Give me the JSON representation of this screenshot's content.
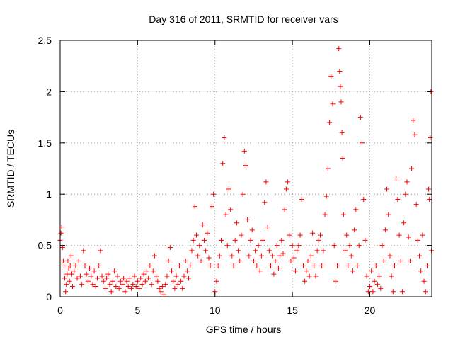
{
  "chart_data": {
    "type": "scatter",
    "title": "Day 316 of 2011, SRMTID for receiver vars",
    "xlabel": "GPS time / hours",
    "ylabel": "SRMTID / TECUs",
    "xlim": [
      0,
      24
    ],
    "ylim": [
      0,
      2.5
    ],
    "xticks": [
      0,
      5,
      10,
      15,
      20
    ],
    "yticks": [
      0,
      0.5,
      1,
      1.5,
      2,
      2.5
    ],
    "xtick_labels": [
      "0",
      "5",
      "10",
      "15",
      "20"
    ],
    "ytick_labels": [
      "0",
      "0.5",
      "1",
      "1.5",
      "2",
      "2.5"
    ],
    "grid": true,
    "marker": "+",
    "color": "#ff0000",
    "series": [
      {
        "name": "SRMTID",
        "points": [
          [
            0.0,
            0.55
          ],
          [
            0.05,
            0.62
          ],
          [
            0.1,
            0.68
          ],
          [
            0.15,
            0.48
          ],
          [
            0.2,
            0.35
          ],
          [
            0.25,
            0.3
          ],
          [
            0.3,
            0.18
          ],
          [
            0.35,
            0.05
          ],
          [
            0.4,
            0.12
          ],
          [
            0.45,
            0.22
          ],
          [
            0.5,
            0.35
          ],
          [
            0.55,
            0.28
          ],
          [
            0.6,
            0.15
          ],
          [
            0.65,
            0.3
          ],
          [
            0.7,
            0.4
          ],
          [
            0.75,
            0.22
          ],
          [
            0.8,
            0.1
          ],
          [
            0.9,
            0.25
          ],
          [
            1.0,
            0.3
          ],
          [
            1.1,
            0.18
          ],
          [
            1.2,
            0.35
          ],
          [
            1.3,
            0.2
          ],
          [
            1.4,
            0.12
          ],
          [
            1.5,
            0.45
          ],
          [
            1.6,
            0.3
          ],
          [
            1.7,
            0.22
          ],
          [
            1.8,
            0.15
          ],
          [
            1.9,
            0.28
          ],
          [
            2.0,
            0.2
          ],
          [
            2.1,
            0.12
          ],
          [
            2.2,
            0.25
          ],
          [
            2.3,
            0.1
          ],
          [
            2.4,
            0.18
          ],
          [
            2.5,
            0.3
          ],
          [
            2.6,
            0.45
          ],
          [
            2.7,
            0.2
          ],
          [
            2.8,
            0.15
          ],
          [
            2.9,
            0.08
          ],
          [
            3.0,
            0.18
          ],
          [
            3.1,
            0.22
          ],
          [
            3.2,
            0.12
          ],
          [
            3.3,
            0.05
          ],
          [
            3.4,
            0.15
          ],
          [
            3.5,
            0.25
          ],
          [
            3.6,
            0.1
          ],
          [
            3.7,
            0.2
          ],
          [
            3.8,
            0.08
          ],
          [
            3.9,
            0.15
          ],
          [
            4.0,
            0.12
          ],
          [
            4.1,
            0.18
          ],
          [
            4.2,
            0.05
          ],
          [
            4.3,
            0.15
          ],
          [
            4.4,
            0.1
          ],
          [
            4.5,
            0.18
          ],
          [
            4.6,
            0.08
          ],
          [
            4.7,
            0.12
          ],
          [
            4.8,
            0.2
          ],
          [
            4.9,
            0.1
          ],
          [
            5.0,
            0.15
          ],
          [
            5.1,
            0.08
          ],
          [
            5.2,
            0.18
          ],
          [
            5.3,
            0.12
          ],
          [
            5.4,
            0.22
          ],
          [
            5.5,
            0.15
          ],
          [
            5.6,
            0.25
          ],
          [
            5.7,
            0.18
          ],
          [
            5.8,
            0.3
          ],
          [
            5.9,
            0.12
          ],
          [
            6.0,
            0.25
          ],
          [
            6.1,
            0.4
          ],
          [
            6.2,
            0.2
          ],
          [
            6.3,
            0.15
          ],
          [
            6.4,
            0.08
          ],
          [
            6.5,
            0.05
          ],
          [
            6.6,
            0.1
          ],
          [
            6.7,
            0.02
          ],
          [
            6.8,
            0.12
          ],
          [
            6.9,
            0.2
          ],
          [
            7.0,
            0.35
          ],
          [
            7.1,
            0.48
          ],
          [
            7.2,
            0.25
          ],
          [
            7.3,
            0.15
          ],
          [
            7.4,
            0.08
          ],
          [
            7.5,
            0.2
          ],
          [
            7.6,
            0.12
          ],
          [
            7.7,
            0.3
          ],
          [
            7.8,
            0.15
          ],
          [
            7.9,
            0.08
          ],
          [
            8.0,
            0.2
          ],
          [
            8.1,
            0.35
          ],
          [
            8.2,
            0.25
          ],
          [
            8.3,
            0.18
          ],
          [
            8.4,
            0.3
          ],
          [
            8.5,
            0.45
          ],
          [
            8.6,
            0.55
          ],
          [
            8.7,
            0.88
          ],
          [
            8.8,
            0.6
          ],
          [
            8.9,
            0.4
          ],
          [
            9.0,
            0.5
          ],
          [
            9.1,
            0.35
          ],
          [
            9.2,
            0.7
          ],
          [
            9.3,
            0.55
          ],
          [
            9.4,
            0.45
          ],
          [
            9.5,
            0.62
          ],
          [
            9.6,
            0.38
          ],
          [
            9.7,
            0.3
          ],
          [
            9.8,
            0.88
          ],
          [
            9.9,
            1.0
          ],
          [
            10.0,
            0.05
          ],
          [
            10.1,
            0.15
          ],
          [
            10.2,
            0.3
          ],
          [
            10.3,
            0.4
          ],
          [
            10.4,
            0.55
          ],
          [
            10.5,
            1.3
          ],
          [
            10.6,
            1.55
          ],
          [
            10.7,
            0.8
          ],
          [
            10.8,
            0.5
          ],
          [
            10.9,
            1.05
          ],
          [
            11.0,
            0.85
          ],
          [
            11.1,
            0.4
          ],
          [
            11.2,
            0.3
          ],
          [
            11.3,
            0.55
          ],
          [
            11.4,
            0.72
          ],
          [
            11.5,
            0.45
          ],
          [
            11.6,
            0.35
          ],
          [
            11.7,
            0.6
          ],
          [
            11.8,
            1.0
          ],
          [
            11.9,
            1.42
          ],
          [
            12.0,
            1.28
          ],
          [
            12.1,
            0.75
          ],
          [
            12.2,
            0.4
          ],
          [
            12.3,
            0.55
          ],
          [
            12.4,
            0.65
          ],
          [
            12.5,
            0.35
          ],
          [
            12.6,
            0.45
          ],
          [
            12.7,
            0.3
          ],
          [
            12.8,
            0.5
          ],
          [
            12.9,
            0.25
          ],
          [
            13.0,
            0.4
          ],
          [
            13.1,
            0.55
          ],
          [
            13.2,
            0.92
          ],
          [
            13.3,
            1.12
          ],
          [
            13.4,
            0.68
          ],
          [
            13.5,
            0.45
          ],
          [
            13.6,
            0.3
          ],
          [
            13.7,
            0.4
          ],
          [
            13.8,
            0.22
          ],
          [
            13.9,
            0.35
          ],
          [
            14.0,
            0.5
          ],
          [
            14.1,
            0.28
          ],
          [
            14.2,
            0.4
          ],
          [
            14.3,
            0.55
          ],
          [
            14.4,
            0.42
          ],
          [
            14.5,
            0.85
          ],
          [
            14.6,
            1.05
          ],
          [
            14.7,
            1.12
          ],
          [
            14.8,
            0.6
          ],
          [
            14.9,
            0.35
          ],
          [
            15.0,
            0.5
          ],
          [
            15.1,
            0.38
          ],
          [
            15.2,
            0.25
          ],
          [
            15.3,
            0.45
          ],
          [
            15.4,
            0.5
          ],
          [
            15.5,
            0.6
          ],
          [
            15.6,
            0.95
          ],
          [
            15.7,
            0.3
          ],
          [
            15.8,
            0.15
          ],
          [
            15.9,
            0.25
          ],
          [
            16.0,
            0.35
          ],
          [
            16.1,
            0.2
          ],
          [
            16.2,
            0.4
          ],
          [
            16.3,
            0.62
          ],
          [
            16.4,
            0.3
          ],
          [
            16.5,
            0.2
          ],
          [
            16.6,
            0.45
          ],
          [
            16.7,
            0.55
          ],
          [
            16.8,
            0.6
          ],
          [
            16.9,
            0.3
          ],
          [
            17.0,
            0.45
          ],
          [
            17.1,
            0.8
          ],
          [
            17.2,
            0.98
          ],
          [
            17.3,
            1.25
          ],
          [
            17.4,
            1.7
          ],
          [
            17.5,
            2.15
          ],
          [
            17.6,
            1.88
          ],
          [
            17.7,
            0.5
          ],
          [
            17.8,
            0.15
          ],
          [
            17.9,
            0.3
          ],
          [
            18.0,
            2.42
          ],
          [
            18.05,
            2.2
          ],
          [
            18.1,
            2.05
          ],
          [
            18.15,
            1.9
          ],
          [
            18.2,
            1.6
          ],
          [
            18.25,
            1.35
          ],
          [
            18.3,
            0.8
          ],
          [
            18.4,
            0.45
          ],
          [
            18.5,
            0.6
          ],
          [
            18.6,
            0.3
          ],
          [
            18.7,
            0.5
          ],
          [
            18.8,
            0.4
          ],
          [
            18.9,
            0.25
          ],
          [
            19.0,
            0.65
          ],
          [
            19.1,
            0.85
          ],
          [
            19.2,
            0.3
          ],
          [
            19.3,
            0.5
          ],
          [
            19.4,
            1.75
          ],
          [
            19.5,
            1.5
          ],
          [
            19.6,
            0.95
          ],
          [
            19.7,
            0.55
          ],
          [
            19.8,
            0.2
          ],
          [
            19.9,
            0.05
          ],
          [
            20.0,
            0.1
          ],
          [
            20.1,
            0.25
          ],
          [
            20.2,
            0.05
          ],
          [
            20.3,
            0.15
          ],
          [
            20.4,
            0.3
          ],
          [
            20.5,
            0.12
          ],
          [
            20.6,
            0.2
          ],
          [
            20.7,
            0.08
          ],
          [
            20.8,
            0.5
          ],
          [
            20.9,
            0.35
          ],
          [
            21.0,
            0.65
          ],
          [
            21.1,
            1.05
          ],
          [
            21.2,
            0.8
          ],
          [
            21.3,
            0.4
          ],
          [
            21.4,
            0.2
          ],
          [
            21.5,
            0.05
          ],
          [
            21.6,
            0.3
          ],
          [
            21.7,
            1.15
          ],
          [
            21.8,
            0.95
          ],
          [
            21.9,
            0.6
          ],
          [
            22.0,
            0.35
          ],
          [
            22.1,
            0.05
          ],
          [
            22.2,
            0.72
          ],
          [
            22.3,
            1.0
          ],
          [
            22.4,
            1.12
          ],
          [
            22.5,
            0.58
          ],
          [
            22.6,
            0.35
          ],
          [
            22.7,
            1.25
          ],
          [
            22.8,
            1.72
          ],
          [
            22.9,
            1.58
          ],
          [
            23.0,
            0.9
          ],
          [
            23.1,
            0.55
          ],
          [
            23.2,
            0.4
          ],
          [
            23.3,
            0.25
          ],
          [
            23.4,
            0.6
          ],
          [
            23.5,
            0.15
          ],
          [
            23.6,
            0.05
          ],
          [
            23.7,
            0.3
          ],
          [
            23.8,
            1.05
          ],
          [
            23.85,
            0.95
          ],
          [
            23.9,
            1.55
          ],
          [
            23.95,
            2.0
          ],
          [
            23.98,
            0.45
          ]
        ]
      }
    ]
  }
}
